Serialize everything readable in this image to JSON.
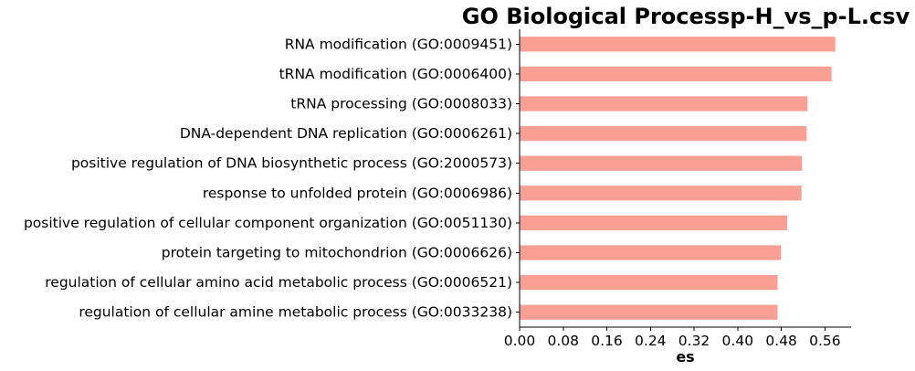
{
  "chart_data": {
    "type": "bar",
    "orientation": "horizontal",
    "title": "GO Biological Processp-H_vs_p-L.csv",
    "xlabel": "es",
    "ylabel": "",
    "xlim": [
      0,
      0.608
    ],
    "xticks": [
      0.0,
      0.08,
      0.16,
      0.24,
      0.32,
      0.4,
      0.48,
      0.56
    ],
    "xtick_labels": [
      "0.00",
      "0.08",
      "0.16",
      "0.24",
      "0.32",
      "0.40",
      "0.48",
      "0.56"
    ],
    "grid": false,
    "bar_color": "#fa9f94",
    "categories": [
      "RNA modification (GO:0009451)",
      "tRNA modification (GO:0006400)",
      "tRNA processing (GO:0008033)",
      "DNA-dependent DNA replication (GO:0006261)",
      "positive regulation of DNA biosynthetic process (GO:2000573)",
      "response to unfolded protein (GO:0006986)",
      "positive regulation of cellular component organization (GO:0051130)",
      "protein targeting to mitochondrion (GO:0006626)",
      "regulation of cellular amino acid metabolic process (GO:0006521)",
      "regulation of cellular amine metabolic process (GO:0033238)"
    ],
    "values": [
      0.579,
      0.572,
      0.528,
      0.526,
      0.518,
      0.517,
      0.491,
      0.479,
      0.473,
      0.473
    ]
  }
}
